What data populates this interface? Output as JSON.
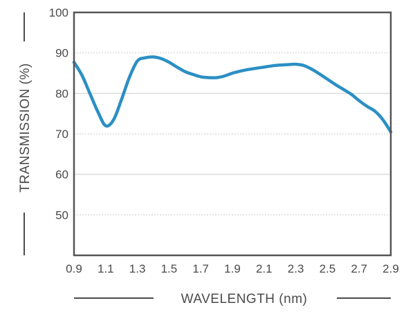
{
  "chart_data": {
    "type": "line",
    "title": "",
    "xlabel": "WAVELENGTH (nm)",
    "ylabel": "TRANSMISSION (%)",
    "xlim": [
      0.9,
      2.9
    ],
    "ylim": [
      40,
      100
    ],
    "x_ticks": [
      "0.9",
      "1.1",
      "1.3",
      "1.5",
      "1.7",
      "1.9",
      "2.1",
      "2.3",
      "2.5",
      "2.7",
      "2.9"
    ],
    "y_ticks": [
      "50",
      "60",
      "70",
      "80",
      "90",
      "100"
    ],
    "grid": true,
    "legend": "none",
    "series": [
      {
        "color": "#2b8fc4",
        "x": [
          0.9,
          0.95,
          1.0,
          1.05,
          1.1,
          1.15,
          1.2,
          1.25,
          1.3,
          1.35,
          1.4,
          1.45,
          1.5,
          1.55,
          1.6,
          1.65,
          1.7,
          1.75,
          1.8,
          1.85,
          1.9,
          1.95,
          2.0,
          2.05,
          2.1,
          2.15,
          2.2,
          2.25,
          2.3,
          2.35,
          2.4,
          2.45,
          2.5,
          2.55,
          2.6,
          2.65,
          2.7,
          2.75,
          2.8,
          2.85,
          2.9
        ],
        "y": [
          87.7,
          84.5,
          80.0,
          75.5,
          72.0,
          73.5,
          78.5,
          84.0,
          88.0,
          88.8,
          89.0,
          88.6,
          87.7,
          86.5,
          85.4,
          84.7,
          84.1,
          83.9,
          83.9,
          84.3,
          85.0,
          85.5,
          85.9,
          86.2,
          86.5,
          86.8,
          87.0,
          87.1,
          87.2,
          86.9,
          86.0,
          84.8,
          83.5,
          82.2,
          81.0,
          79.8,
          78.2,
          76.8,
          75.6,
          73.5,
          70.5
        ]
      }
    ]
  },
  "colors": {
    "line": "#2b8fc4",
    "frame": "#555555",
    "grid": "#dcdcdc",
    "text": "#4a4a4a"
  }
}
